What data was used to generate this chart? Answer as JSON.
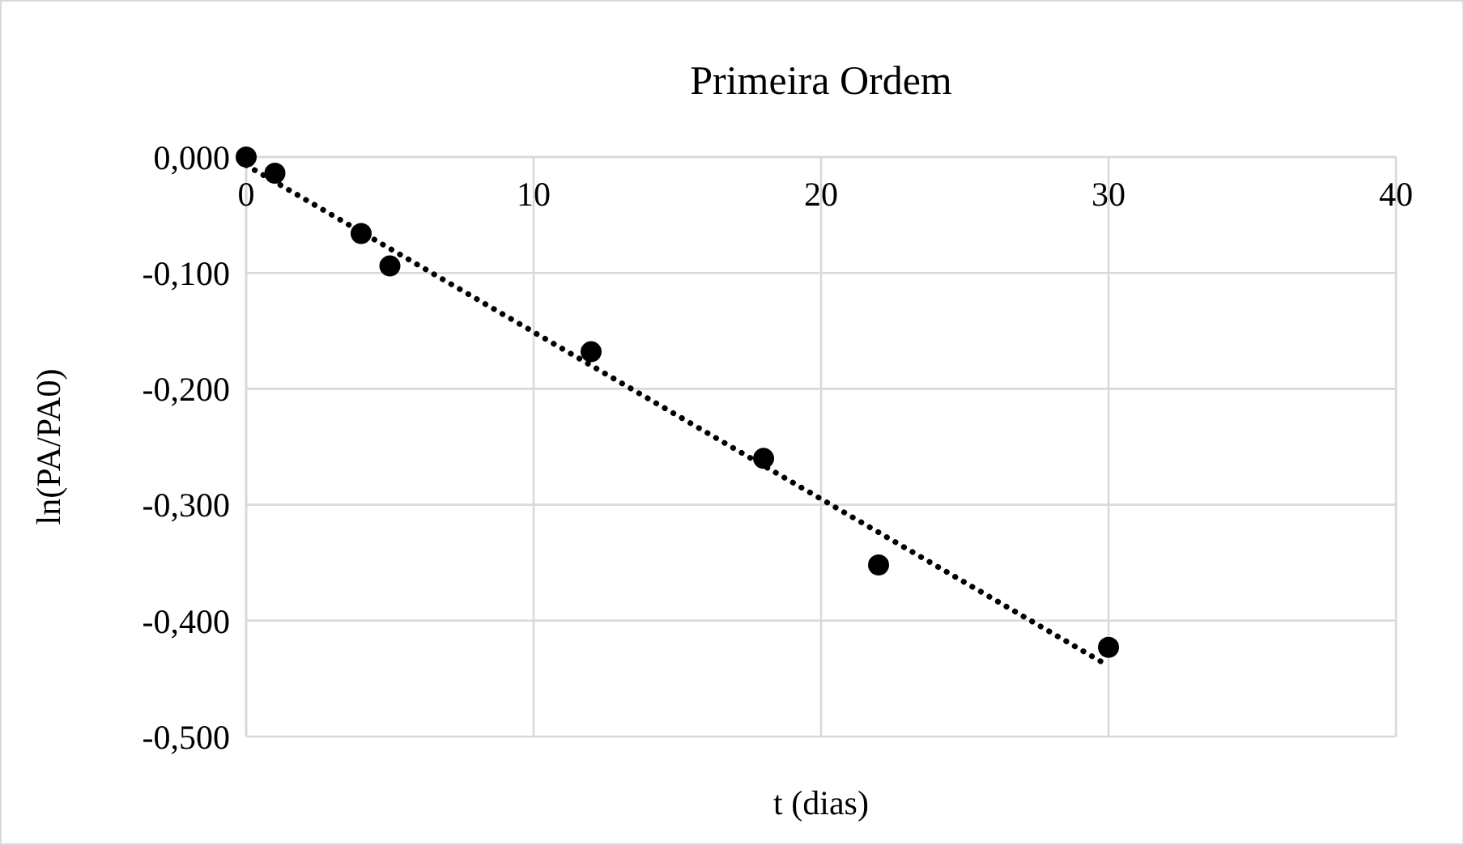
{
  "chart_data": {
    "type": "scatter",
    "title": "Primeira Ordem",
    "xlabel": "t (dias)",
    "ylabel": "ln(PA/PA0)",
    "xlim": [
      0,
      40
    ],
    "xticks": [
      0,
      10,
      20,
      30,
      40
    ],
    "ylim": [
      -0.5,
      0
    ],
    "yticks": [
      {
        "value": 0,
        "label": "0,000"
      },
      {
        "value": -0.1,
        "label": "-0,100"
      },
      {
        "value": -0.2,
        "label": "-0,200"
      },
      {
        "value": -0.3,
        "label": "-0,300"
      },
      {
        "value": -0.4,
        "label": "-0,400"
      },
      {
        "value": -0.5,
        "label": "-0,500"
      }
    ],
    "grid": true,
    "series": [
      {
        "color": "#000000",
        "marker": "circle",
        "x": [
          0,
          1,
          4,
          5,
          12,
          18,
          22,
          30
        ],
        "values": [
          0,
          -0.014,
          -0.066,
          -0.094,
          -0.168,
          -0.26,
          -0.352,
          -0.423
        ]
      },
      {
        "type": "line",
        "color": "#000000",
        "marker": "none",
        "line_style": "dotted",
        "x": [
          0,
          30
        ],
        "values": [
          -0.007,
          -0.439
        ]
      }
    ]
  }
}
